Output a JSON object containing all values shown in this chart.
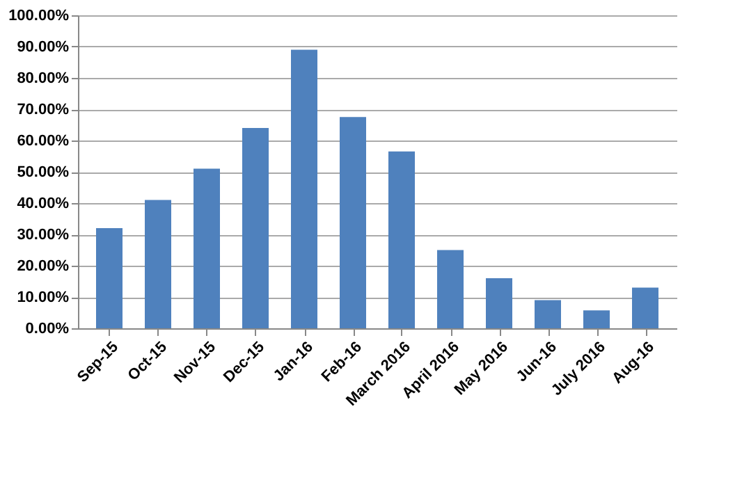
{
  "chart_data": {
    "type": "bar",
    "categories": [
      "Sep-15",
      "Oct-15",
      "Nov-15",
      "Dec-15",
      "Jan-16",
      "Feb-16",
      "March 2016",
      "April 2016",
      "May 2016",
      "Jun-16",
      "July 2016",
      "Aug-16"
    ],
    "values": [
      32,
      41,
      51,
      64,
      89,
      67.5,
      56.5,
      25,
      16,
      9,
      5.7,
      13
    ],
    "color": "#4f81bd",
    "ylim": [
      0,
      100
    ],
    "yticks": [
      {
        "value": 0,
        "label": "0.00%"
      },
      {
        "value": 10,
        "label": "10.00%"
      },
      {
        "value": 20,
        "label": "20.00%"
      },
      {
        "value": 30,
        "label": "30.00%"
      },
      {
        "value": 40,
        "label": "40.00%"
      },
      {
        "value": 50,
        "label": "50.00%"
      },
      {
        "value": 60,
        "label": "60.00%"
      },
      {
        "value": 70,
        "label": "70.00%"
      },
      {
        "value": 80,
        "label": "80.00%"
      },
      {
        "value": 90,
        "label": "90.00%"
      },
      {
        "value": 100,
        "label": "100.00%"
      }
    ],
    "grid": "y"
  }
}
